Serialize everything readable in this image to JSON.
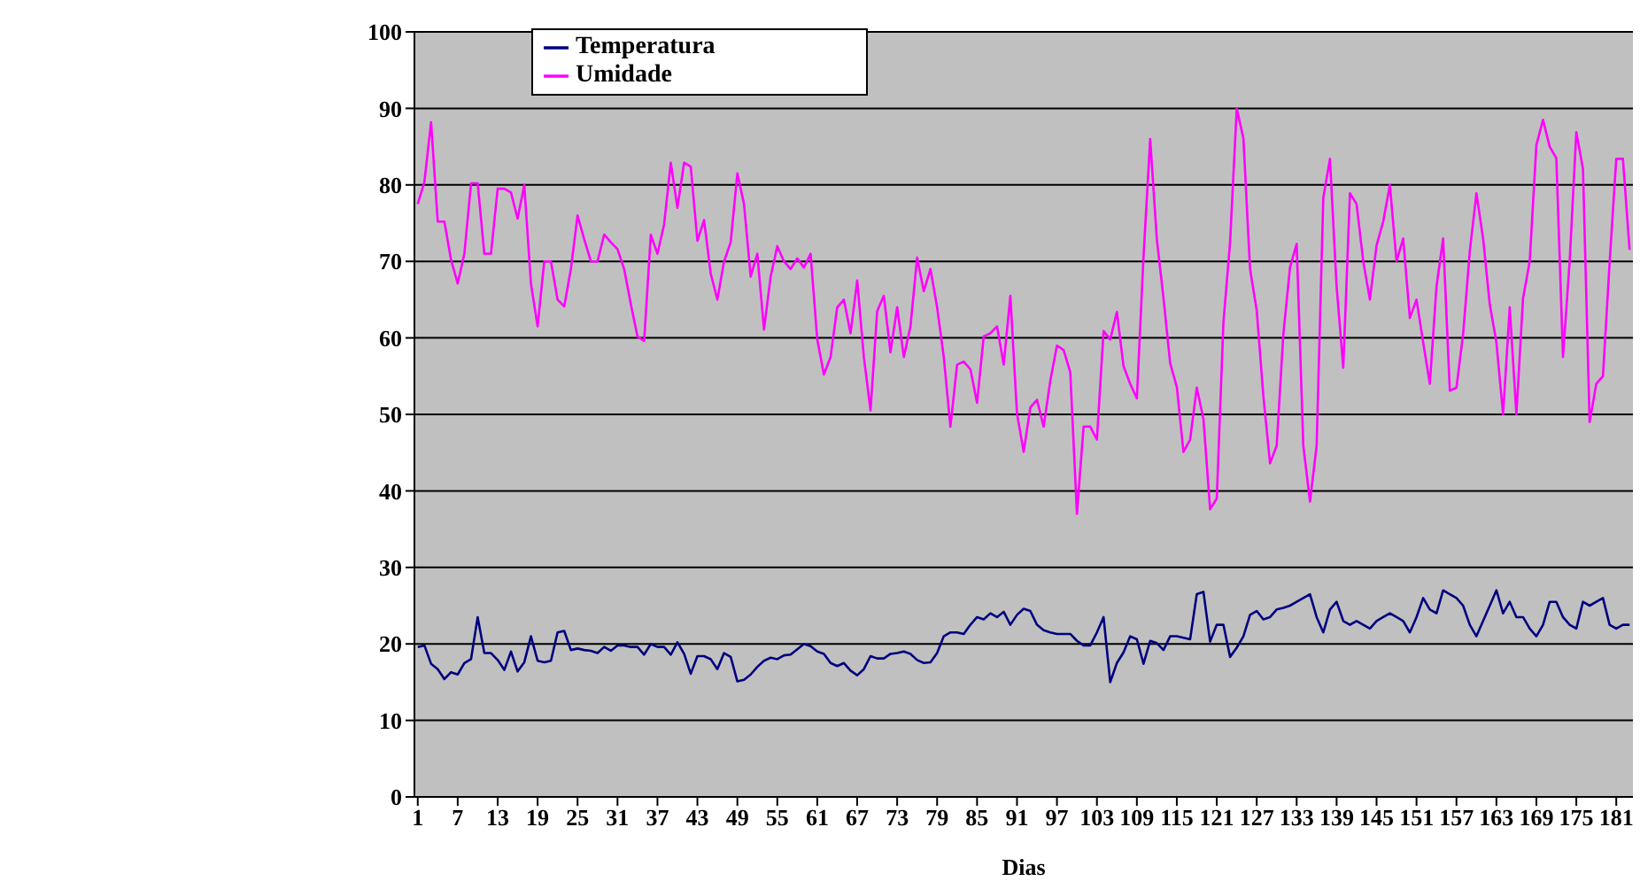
{
  "chart_data": {
    "type": "line",
    "xlabel": "Dias",
    "x": [
      1,
      2,
      3,
      4,
      5,
      6,
      7,
      8,
      9,
      10,
      11,
      12,
      13,
      14,
      15,
      16,
      17,
      18,
      19,
      20,
      21,
      22,
      23,
      24,
      25,
      26,
      27,
      28,
      29,
      30,
      31,
      32,
      33,
      34,
      35,
      36,
      37,
      38,
      39,
      40,
      41,
      42,
      43,
      44,
      45,
      46,
      47,
      48,
      49,
      50,
      51,
      52,
      53,
      54,
      55,
      56,
      57,
      58,
      59,
      60,
      61,
      62,
      63,
      64,
      65,
      66,
      67,
      68,
      69,
      70,
      71,
      72,
      73,
      74,
      75,
      76,
      77,
      78,
      79,
      80,
      81,
      82,
      83,
      84,
      85,
      86,
      87,
      88,
      89,
      90,
      91,
      92,
      93,
      94,
      95,
      96,
      97,
      98,
      99,
      100,
      101,
      102,
      103,
      104,
      105,
      106,
      107,
      108,
      109,
      110,
      111,
      112,
      113,
      114,
      115,
      116,
      117,
      118,
      119,
      120,
      121,
      122,
      123,
      124,
      125,
      126,
      127,
      128,
      129,
      130,
      131,
      132,
      133,
      134,
      135,
      136,
      137,
      138,
      139,
      140,
      141,
      142,
      143,
      144,
      145,
      146,
      147,
      148,
      149,
      150,
      151,
      152,
      153,
      154,
      155,
      156,
      157,
      158,
      159,
      160,
      161,
      162,
      163,
      164,
      165,
      166,
      167,
      168,
      169,
      170,
      171,
      172,
      173,
      174,
      175,
      176,
      177,
      178,
      179,
      180,
      181,
      182,
      183
    ],
    "series": [
      {
        "name": "Temperatura",
        "color": "#000080",
        "values": [
          19.6,
          19.8,
          17.4,
          16.7,
          15.4,
          16.3,
          16,
          17.5,
          18,
          23.5,
          18.8,
          18.8,
          17.9,
          16.6,
          19,
          16.4,
          17.6,
          21,
          17.8,
          17.6,
          17.8,
          21.5,
          21.7,
          19.2,
          19.4,
          19.2,
          19.1,
          18.8,
          19.6,
          19.1,
          19.8,
          19.8,
          19.6,
          19.6,
          18.6,
          20,
          19.6,
          19.6,
          18.6,
          20.2,
          18.7,
          16.1,
          18.4,
          18.4,
          18,
          16.7,
          18.8,
          18.3,
          15.1,
          15.3,
          16,
          17,
          17.8,
          18.2,
          18,
          18.5,
          18.6,
          19.3,
          20,
          19.7,
          19,
          18.7,
          17.5,
          17.1,
          17.5,
          16.5,
          15.9,
          16.7,
          18.4,
          18.1,
          18.1,
          18.7,
          18.8,
          19,
          18.7,
          17.9,
          17.5,
          17.6,
          18.8,
          21,
          21.5,
          21.5,
          21.3,
          22.5,
          23.5,
          23.2,
          24,
          23.5,
          24.2,
          22.5,
          23.8,
          24.6,
          24.3,
          22.5,
          21.8,
          21.5,
          21.3,
          21.3,
          21.3,
          20.4,
          19.8,
          19.8,
          21.5,
          23.5,
          15,
          17.5,
          18.9,
          21,
          20.6,
          17.4,
          20.4,
          20.1,
          19.2,
          21,
          21,
          20.8,
          20.6,
          26.5,
          26.8,
          20.3,
          22.5,
          22.5,
          18.3,
          19.5,
          21,
          23.8,
          24.3,
          23.2,
          23.5,
          24.5,
          24.7,
          25,
          25.5,
          26,
          26.5,
          23.5,
          21.5,
          24.5,
          25.5,
          23,
          22.5,
          23,
          22.5,
          22,
          23,
          23.5,
          24,
          23.5,
          23,
          21.5,
          23.5,
          26,
          24.5,
          24,
          27,
          26.5,
          26,
          25,
          22.5,
          21,
          23,
          25,
          27,
          24,
          25.5,
          23.5,
          23.5,
          22,
          21,
          22.5,
          25.5,
          25.5,
          23.5,
          22.5,
          22,
          25.5,
          25,
          25.5,
          26,
          22.5,
          22,
          22.5,
          22.5
        ]
      },
      {
        "name": "Umidade",
        "color": "#ff00ff",
        "values": [
          77.5,
          80.4,
          88.2,
          75.2,
          75.2,
          70.2,
          67.1,
          71,
          80.2,
          80.2,
          71,
          71,
          79.5,
          79.5,
          79,
          75.6,
          80,
          67.1,
          61.5,
          70,
          70,
          65,
          64.1,
          69,
          76,
          72.9,
          70,
          70,
          73.5,
          72.5,
          71.6,
          69,
          64.4,
          60.2,
          59.6,
          73.5,
          71,
          74.8,
          82.9,
          77,
          82.9,
          82.4,
          72.7,
          75.4,
          68.4,
          65,
          70,
          72.5,
          81.5,
          77.5,
          68,
          71,
          61.1,
          68,
          72,
          70,
          69,
          70.4,
          69.2,
          71,
          59.8,
          55.2,
          57.5,
          64,
          65,
          60.6,
          67.5,
          57.5,
          50.5,
          63.5,
          65.5,
          58.1,
          64,
          57.5,
          61.5,
          70.5,
          66.1,
          69,
          64,
          57.5,
          48.4,
          56.5,
          56.9,
          55.9,
          51.5,
          60.2,
          60.6,
          61.5,
          56.5,
          65.5,
          50.1,
          45.1,
          50.9,
          51.9,
          48.4,
          54.4,
          59,
          58.4,
          55.5,
          37,
          48.4,
          48.4,
          46.7,
          60.9,
          59.8,
          63.4,
          56.3,
          54,
          52.1,
          70.6,
          86,
          72.9,
          65.2,
          56.7,
          53.6,
          45.1,
          46.7,
          53.5,
          49.4,
          37.6,
          39,
          62,
          72.5,
          90,
          86.1,
          69,
          63.6,
          52.4,
          43.6,
          45.9,
          60.5,
          69.2,
          72.3,
          45.9,
          38.6,
          45.9,
          78.3,
          83.4,
          66.7,
          56.1,
          78.9,
          77.5,
          70,
          65,
          72.1,
          75.2,
          80,
          70,
          73,
          62.6,
          65,
          59.4,
          54,
          66.7,
          73,
          53.1,
          53.5,
          60.5,
          71.3,
          78.9,
          73,
          64.4,
          59.4,
          50,
          64,
          50,
          65.2,
          70,
          85.2,
          88.5,
          85,
          83.5,
          57.5,
          70,
          86.9,
          82.1,
          49,
          54,
          55,
          69.8,
          83.4,
          83.4,
          71.5
        ]
      }
    ],
    "xlim": [
      0.5,
      183.5
    ],
    "xticks": [
      1,
      7,
      13,
      19,
      25,
      31,
      37,
      43,
      49,
      55,
      61,
      67,
      73,
      79,
      85,
      91,
      97,
      103,
      109,
      115,
      121,
      127,
      133,
      139,
      145,
      151,
      157,
      163,
      169,
      175,
      181
    ],
    "ylim": [
      0,
      100
    ],
    "yticks": [
      0,
      10,
      20,
      30,
      40,
      50,
      60,
      70,
      80,
      90,
      100
    ],
    "grid": "y",
    "legend": "top",
    "marker": "none",
    "line_style": "solid"
  }
}
